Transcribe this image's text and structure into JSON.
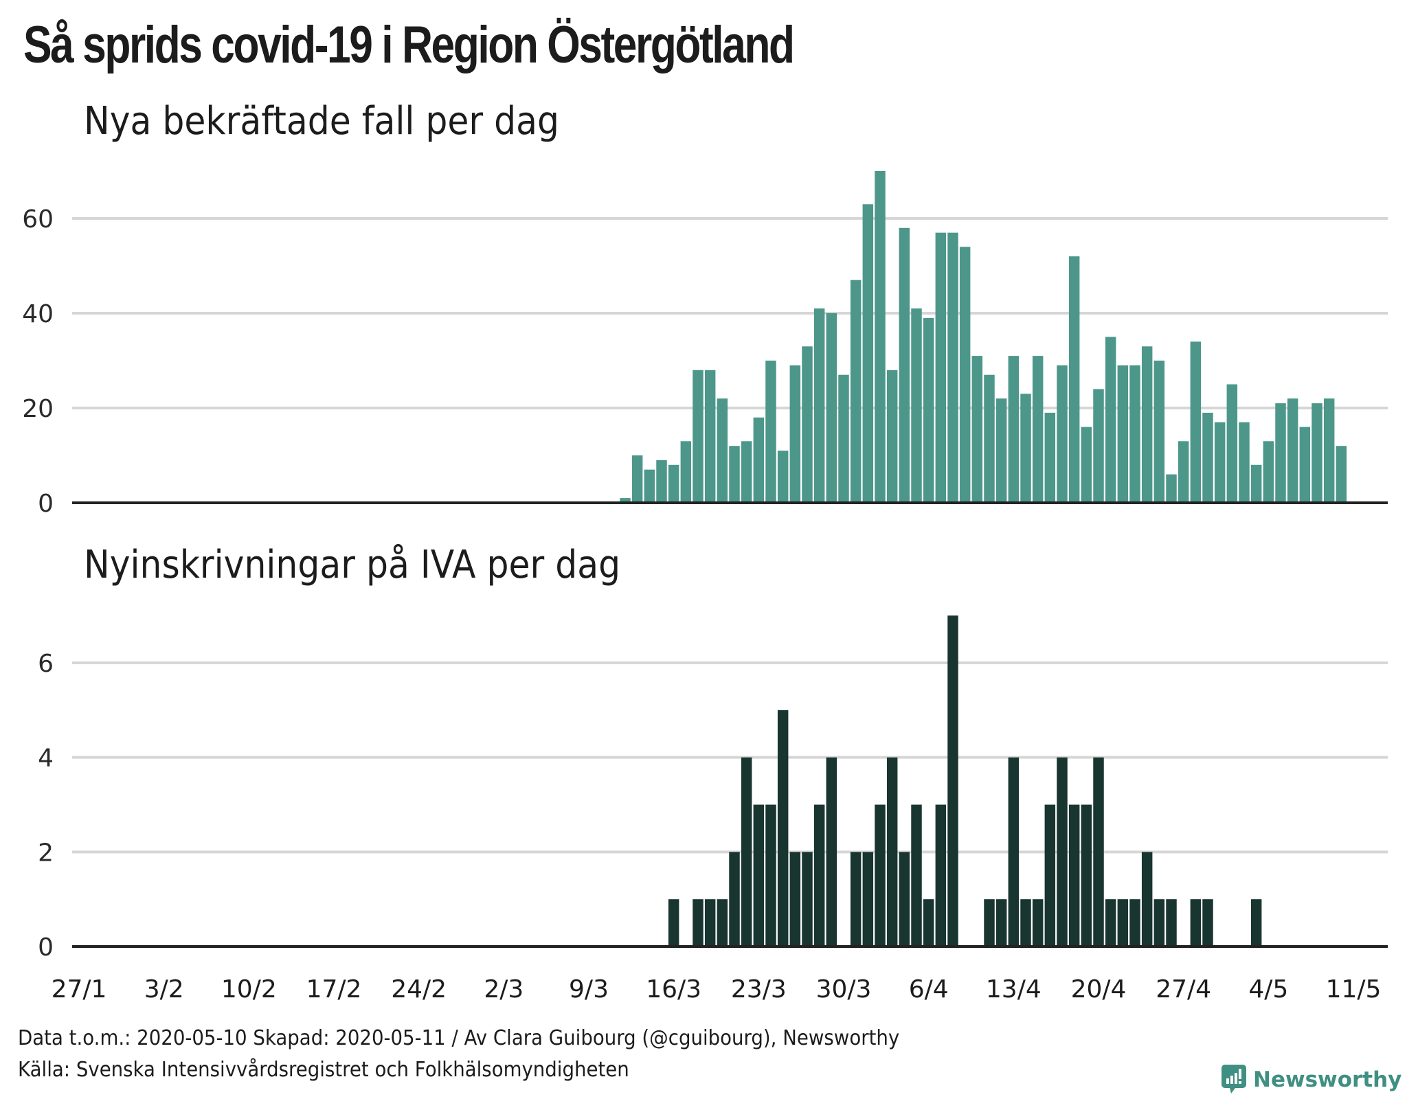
{
  "title": "Så sprids covid-19 i Region Östergötland",
  "footer": {
    "line1": "Data t.o.m.: 2020-05-10 Skapad: 2020-05-11 / Av Clara Guibourg (@cguibourg), Newsworthy",
    "line2": "Källa: Svenska Intensivvårdsregistret och Folkhälsomyndigheten"
  },
  "logo": {
    "text": "Newsworthy",
    "icon": "newsworthy-logo-icon"
  },
  "colors": {
    "cases": "#4c978a",
    "icu": "#18352f",
    "grid": "#d6d6d6",
    "axis": "#232323"
  },
  "chart_data": [
    {
      "type": "bar",
      "title": "Nya bekräftade fall per dag",
      "xlabel": "",
      "ylabel": "",
      "ylim": [
        0,
        72
      ],
      "yticks": [
        0,
        20,
        40,
        60
      ],
      "grid": true,
      "x_start": "2020-01-27",
      "x_end": "2020-05-11",
      "xtick_labels": [
        "27/1",
        "3/2",
        "10/2",
        "17/2",
        "24/2",
        "2/3",
        "9/3",
        "16/3",
        "23/3",
        "30/3",
        "6/4",
        "13/4",
        "20/4",
        "27/4",
        "4/5",
        "11/5"
      ],
      "series_start": "2020-03-12",
      "values": [
        1,
        10,
        7,
        9,
        8,
        13,
        28,
        28,
        22,
        12,
        13,
        18,
        30,
        11,
        29,
        33,
        41,
        40,
        27,
        47,
        63,
        70,
        28,
        58,
        41,
        39,
        57,
        57,
        54,
        31,
        27,
        22,
        31,
        23,
        31,
        19,
        29,
        52,
        16,
        24,
        35,
        29,
        29,
        33,
        30,
        6,
        13,
        34,
        19,
        17,
        25,
        17,
        8,
        13,
        21,
        22,
        16,
        21,
        22,
        12
      ]
    },
    {
      "type": "bar",
      "title": "Nyinskrivningar på IVA per dag",
      "xlabel": "",
      "ylabel": "",
      "ylim": [
        0,
        7.2
      ],
      "yticks": [
        0,
        2,
        4,
        6
      ],
      "grid": true,
      "x_start": "2020-01-27",
      "x_end": "2020-05-11",
      "xtick_labels": [
        "27/1",
        "3/2",
        "10/2",
        "17/2",
        "24/2",
        "2/3",
        "9/3",
        "16/3",
        "23/3",
        "30/3",
        "6/4",
        "13/4",
        "20/4",
        "27/4",
        "4/5",
        "11/5"
      ],
      "series_start": "2020-03-12",
      "values": [
        0,
        0,
        0,
        0,
        1,
        0,
        1,
        1,
        1,
        2,
        4,
        3,
        3,
        5,
        2,
        2,
        3,
        4,
        0,
        2,
        2,
        3,
        4,
        2,
        3,
        1,
        3,
        7,
        0,
        0,
        1,
        1,
        4,
        1,
        1,
        3,
        4,
        3,
        3,
        4,
        1,
        1,
        1,
        2,
        1,
        1,
        0,
        1,
        1,
        0,
        0,
        0,
        1,
        0,
        0,
        0,
        0,
        0,
        0,
        0
      ]
    }
  ]
}
